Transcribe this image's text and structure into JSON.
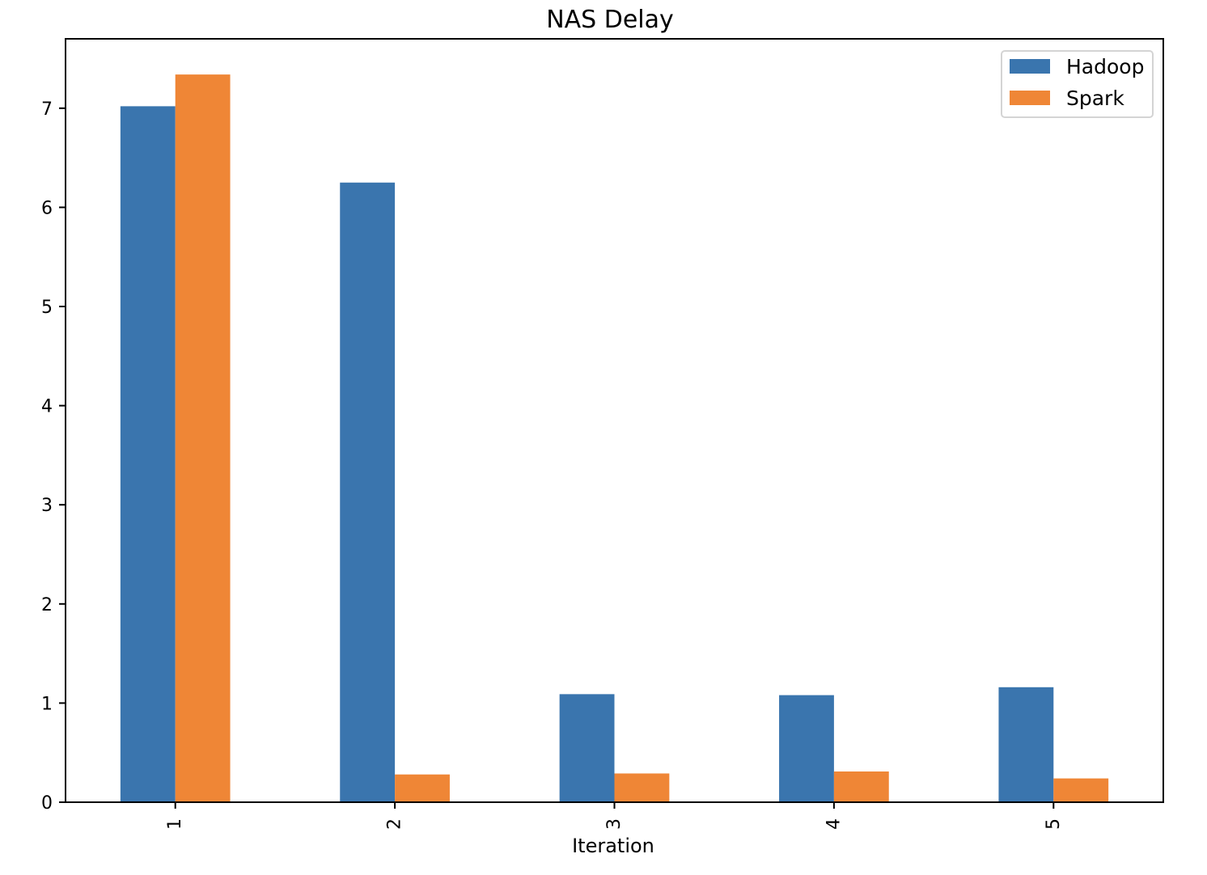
{
  "chart_data": {
    "type": "bar",
    "title": "NAS Delay",
    "xlabel": "Iteration",
    "ylabel": "",
    "categories": [
      "1",
      "2",
      "3",
      "4",
      "5"
    ],
    "series": [
      {
        "name": "Hadoop",
        "color": "#3a75ae",
        "values": [
          7.02,
          6.25,
          1.09,
          1.08,
          1.16
        ]
      },
      {
        "name": "Spark",
        "color": "#ef8636",
        "values": [
          7.34,
          0.28,
          0.29,
          0.31,
          0.24
        ]
      }
    ],
    "yticks": [
      0,
      1,
      2,
      3,
      4,
      5,
      6,
      7
    ],
    "ylim": [
      0,
      7.7
    ],
    "grid": false,
    "legend_position": "upper right"
  }
}
